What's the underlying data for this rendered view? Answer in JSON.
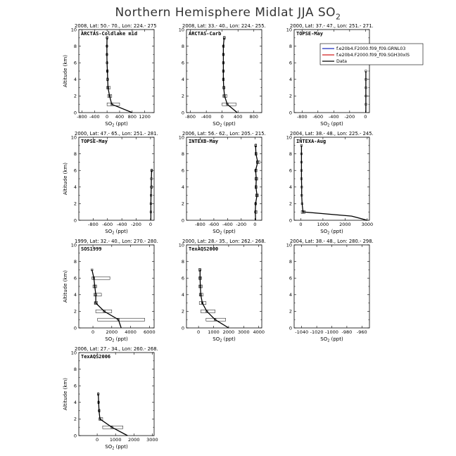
{
  "title": {
    "main": "Northern Hemisphere Midlat JJA SO",
    "sub": "2"
  },
  "ylabel": "Altitude (km)",
  "xlabel": {
    "main": "SO",
    "sub": "2",
    "unit": " (ppt)"
  },
  "legend": {
    "items": [
      {
        "label": "f.e20b4.F2000.f09_f09.GRNL03",
        "color": "#1f2fbf"
      },
      {
        "label": "f.e20b4.F2000.f09_f09.SGH30xlS",
        "color": "#d21f1f"
      },
      {
        "label": "Data",
        "color": "#000000"
      }
    ]
  },
  "chart_data": [
    {
      "type": "line",
      "header": "2008, Lat:  50.- 70., Lon: 224.- 275",
      "name": "ARCTAS-Coldlake mid",
      "xlim": [
        -900,
        1500
      ],
      "xticks": [
        -800,
        -400,
        0,
        400,
        800,
        1200
      ],
      "ylim": [
        0,
        10
      ],
      "yticks": [
        0,
        2,
        4,
        6,
        8,
        10
      ],
      "profile": [
        [
          800,
          0
        ],
        [
          150,
          1
        ],
        [
          80,
          2
        ],
        [
          30,
          3
        ],
        [
          20,
          4
        ],
        [
          10,
          5
        ],
        [
          0,
          6
        ],
        [
          -5,
          7
        ],
        [
          -5,
          8
        ],
        [
          0,
          9
        ]
      ],
      "boxes": [
        [
          0,
          400,
          1
        ],
        [
          20,
          150,
          2
        ],
        [
          -10,
          100,
          3
        ],
        [
          -10,
          40,
          4
        ],
        [
          -10,
          30,
          5
        ],
        [
          -10,
          15,
          6
        ],
        [
          -15,
          10,
          7
        ],
        [
          -15,
          10,
          8
        ],
        [
          -10,
          20,
          9
        ]
      ]
    },
    {
      "type": "line",
      "header": "2008, Lat:  33.- 40., Lon: 224.- 255.",
      "name": "ARCTAS-Carb",
      "xlim": [
        -900,
        1000
      ],
      "xticks": [
        -800,
        -400,
        0,
        400,
        800
      ],
      "ylim": [
        0,
        10
      ],
      "yticks": [
        0,
        2,
        4,
        6,
        8,
        10
      ],
      "profile": [
        [
          380,
          0
        ],
        [
          130,
          1
        ],
        [
          60,
          2
        ],
        [
          40,
          3
        ],
        [
          30,
          4
        ],
        [
          30,
          5
        ],
        [
          30,
          6
        ],
        [
          30,
          7
        ],
        [
          30,
          8
        ],
        [
          50,
          9
        ]
      ],
      "boxes": [
        [
          0,
          350,
          1
        ],
        [
          20,
          120,
          2
        ],
        [
          20,
          70,
          3
        ],
        [
          15,
          50,
          4
        ],
        [
          15,
          45,
          5
        ],
        [
          15,
          45,
          6
        ],
        [
          15,
          45,
          7
        ],
        [
          20,
          50,
          8
        ],
        [
          30,
          80,
          9
        ]
      ]
    },
    {
      "type": "line",
      "header": "2000, Lat:  37.- 47., Lon: 251.- 271.",
      "name": "TOPSE-May",
      "xlim": [
        -900,
        50
      ],
      "xticks": [
        -800,
        -600,
        -400,
        -200,
        0
      ],
      "ylim": [
        0,
        10
      ],
      "yticks": [
        0,
        2,
        4,
        6,
        8,
        10
      ],
      "profile": [
        [
          5,
          0
        ],
        [
          5,
          1
        ],
        [
          5,
          2
        ],
        [
          5,
          3
        ],
        [
          5,
          4
        ],
        [
          5,
          5
        ]
      ],
      "boxes": []
    },
    {
      "type": "line",
      "header": "2000, Lat:  47.- 65., Lon: 251.- 281.",
      "name": "TOPSE-May",
      "xlim": [
        -1000,
        50
      ],
      "xticks": [
        -800,
        -600,
        -400,
        -200,
        0
      ],
      "ylim": [
        0,
        10
      ],
      "yticks": [
        0,
        2,
        4,
        6,
        8,
        10
      ],
      "profile": [
        [
          5,
          0
        ],
        [
          5,
          1
        ],
        [
          5,
          2
        ],
        [
          7,
          3
        ],
        [
          10,
          4
        ],
        [
          12,
          5
        ],
        [
          15,
          6
        ]
      ],
      "boxes": [
        [
          10,
          25,
          6
        ],
        [
          12,
          24,
          4
        ]
      ]
    },
    {
      "type": "line",
      "header": "2006, Lat:  56.- 62., Lon: 205.- 215.",
      "name": "INTEXB-May",
      "xlim": [
        -1000,
        100
      ],
      "xticks": [
        -800,
        -600,
        -400,
        -200,
        0
      ],
      "ylim": [
        0,
        10
      ],
      "yticks": [
        0,
        2,
        4,
        6,
        8,
        10
      ],
      "profile": [
        [
          10,
          0
        ],
        [
          5,
          1
        ],
        [
          10,
          2
        ],
        [
          30,
          3
        ],
        [
          15,
          4
        ],
        [
          20,
          5
        ],
        [
          10,
          6
        ],
        [
          40,
          7
        ],
        [
          15,
          8
        ],
        [
          10,
          9
        ]
      ],
      "boxes": [
        [
          0,
          30,
          1
        ],
        [
          0,
          20,
          2
        ],
        [
          10,
          50,
          3
        ],
        [
          0,
          30,
          4
        ],
        [
          0,
          40,
          5
        ],
        [
          0,
          30,
          6
        ],
        [
          20,
          70,
          7
        ],
        [
          0,
          30,
          8
        ],
        [
          0,
          25,
          9
        ]
      ]
    },
    {
      "type": "line",
      "header": "2004, Lat:  38.- 48., Lon: 225.- 245.",
      "name": "INTEXA-Aug",
      "xlim": [
        -300,
        3100
      ],
      "xticks": [
        0,
        1000,
        2000,
        3000
      ],
      "ylim": [
        0,
        10
      ],
      "yticks": [
        0,
        2,
        4,
        6,
        8,
        10
      ],
      "profile": [
        [
          3000,
          0
        ],
        [
          2300,
          0.5
        ],
        [
          100,
          1
        ],
        [
          60,
          2
        ],
        [
          40,
          3
        ],
        [
          40,
          4
        ],
        [
          30,
          5
        ],
        [
          30,
          6
        ],
        [
          30,
          7
        ],
        [
          30,
          8
        ],
        [
          30,
          9
        ]
      ],
      "boxes": [
        [
          20,
          200,
          1
        ]
      ]
    },
    {
      "type": "line",
      "header": "1999, Lat:  32.- 40., Lon: 270.- 280.",
      "name": "SOS1999",
      "xlim": [
        -1500,
        6500
      ],
      "xticks": [
        0,
        2000,
        4000,
        6000
      ],
      "ylim": [
        0,
        10
      ],
      "yticks": [
        0,
        2,
        4,
        6,
        8,
        10
      ],
      "profile": [
        [
          3000,
          0
        ],
        [
          2700,
          1
        ],
        [
          1200,
          2
        ],
        [
          300,
          3
        ],
        [
          300,
          4
        ],
        [
          200,
          5
        ],
        [
          100,
          6
        ],
        [
          -100,
          7
        ]
      ],
      "boxes": [
        [
          500,
          5500,
          1
        ],
        [
          300,
          2000,
          2
        ],
        [
          150,
          500,
          3
        ],
        [
          100,
          900,
          4
        ],
        [
          0,
          400,
          5
        ],
        [
          -100,
          1800,
          6
        ]
      ]
    },
    {
      "type": "line",
      "header": "2000, Lat:  28.- 35., Lon: 262.- 268.",
      "name": "TexAQS2000",
      "xlim": [
        -800,
        4200
      ],
      "xticks": [
        0,
        1000,
        2000,
        3000,
        4000
      ],
      "ylim": [
        0,
        10
      ],
      "yticks": [
        0,
        2,
        4,
        6,
        8,
        10
      ],
      "profile": [
        [
          2000,
          0
        ],
        [
          1100,
          1
        ],
        [
          550,
          2
        ],
        [
          250,
          3
        ],
        [
          150,
          4
        ],
        [
          120,
          5
        ],
        [
          100,
          6
        ],
        [
          100,
          7
        ]
      ],
      "boxes": [
        [
          500,
          1800,
          1
        ],
        [
          150,
          1100,
          2
        ],
        [
          50,
          500,
          3
        ],
        [
          50,
          300,
          4
        ],
        [
          20,
          250,
          5
        ],
        [
          20,
          200,
          6
        ],
        [
          20,
          150,
          7
        ]
      ]
    },
    {
      "type": "line",
      "header": "2004, Lat:  38.- 48., Lon: 280.- 298.",
      "name": "",
      "xlim": [
        -1050,
        -950
      ],
      "xticks": [
        -1040,
        -1020,
        -1000,
        -980,
        -960
      ],
      "ylim": [
        0,
        10
      ],
      "yticks": [
        0,
        2,
        4,
        6,
        8,
        10
      ],
      "profile": [],
      "boxes": []
    },
    {
      "type": "line",
      "header": "2006, Lat:  27.- 34., Lon: 260.- 268.",
      "name": "TexAQS2006",
      "xlim": [
        -1000,
        3100
      ],
      "xticks": [
        0,
        1000,
        2000,
        3000
      ],
      "ylim": [
        0,
        10
      ],
      "yticks": [
        0,
        2,
        4,
        6,
        8,
        10
      ],
      "profile": [
        [
          1650,
          0
        ],
        [
          800,
          1
        ],
        [
          150,
          2
        ],
        [
          100,
          3
        ],
        [
          80,
          4
        ],
        [
          60,
          5
        ]
      ],
      "boxes": [
        [
          300,
          1400,
          1
        ],
        [
          100,
          300,
          2
        ],
        [
          80,
          150,
          3
        ],
        [
          40,
          100,
          4
        ],
        [
          30,
          80,
          5
        ]
      ]
    }
  ]
}
